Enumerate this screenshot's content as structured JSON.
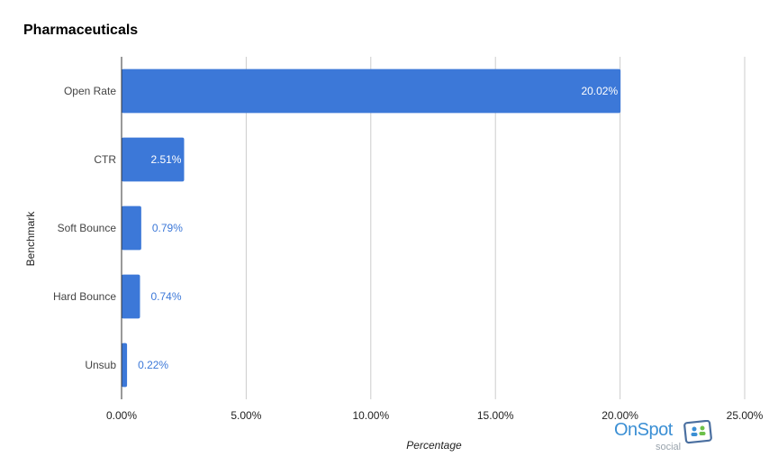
{
  "chart_data": {
    "type": "bar",
    "orientation": "horizontal",
    "title": "Pharmaceuticals",
    "xlabel": "Percentage",
    "ylabel": "Benchmark",
    "categories": [
      "Open Rate",
      "CTR",
      "Soft Bounce",
      "Hard Bounce",
      "Unsub"
    ],
    "values": [
      20.02,
      2.51,
      0.79,
      0.74,
      0.22
    ],
    "data_labels": [
      "20.02%",
      "2.51%",
      "0.79%",
      "0.74%",
      "0.22%"
    ],
    "xlim": [
      0,
      25
    ],
    "x_ticks": [
      0,
      5,
      10,
      15,
      20,
      25
    ],
    "x_tick_labels": [
      "0.00%",
      "5.00%",
      "10.00%",
      "15.00%",
      "20.00%",
      "25.00%"
    ],
    "grid": true,
    "legend": "none",
    "bar_color": "#3c78d8"
  },
  "logo": {
    "word": "OnSpot",
    "sub": "social"
  }
}
